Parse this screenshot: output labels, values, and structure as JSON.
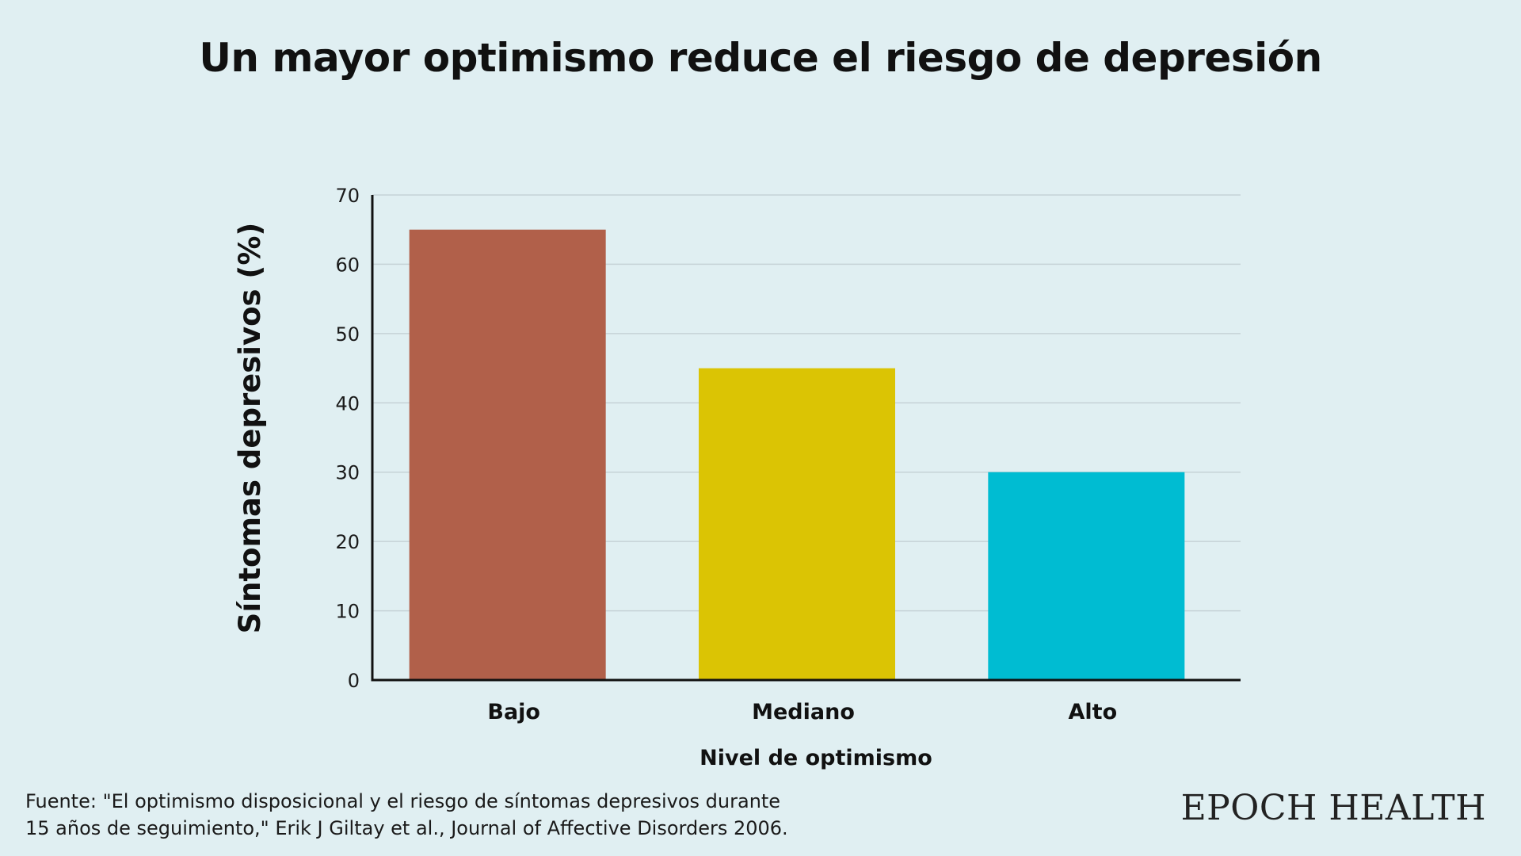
{
  "chart_data": {
    "type": "bar",
    "title": "Un mayor optimismo reduce el riesgo de depresión",
    "xlabel": "Nivel de optimismo",
    "ylabel": "Síntomas depresivos (%)",
    "categories": [
      "Bajo",
      "Mediano",
      "Alto"
    ],
    "values": [
      65,
      45,
      30
    ],
    "colors": [
      "#b1604a",
      "#dbc404",
      "#00bcd2"
    ],
    "ylim": [
      0,
      70
    ],
    "yticks": [
      0,
      10,
      20,
      30,
      40,
      50,
      60,
      70
    ],
    "grid": true,
    "legend": "none"
  },
  "footer": {
    "source_line1": "Fuente: \"El optimismo disposicional y el riesgo de síntomas depresivos durante",
    "source_line2": "15 años de seguimiento,\" Erik J Giltay et al., Journal of Affective Disorders 2006.",
    "brand": "EPOCH HEALTH"
  }
}
